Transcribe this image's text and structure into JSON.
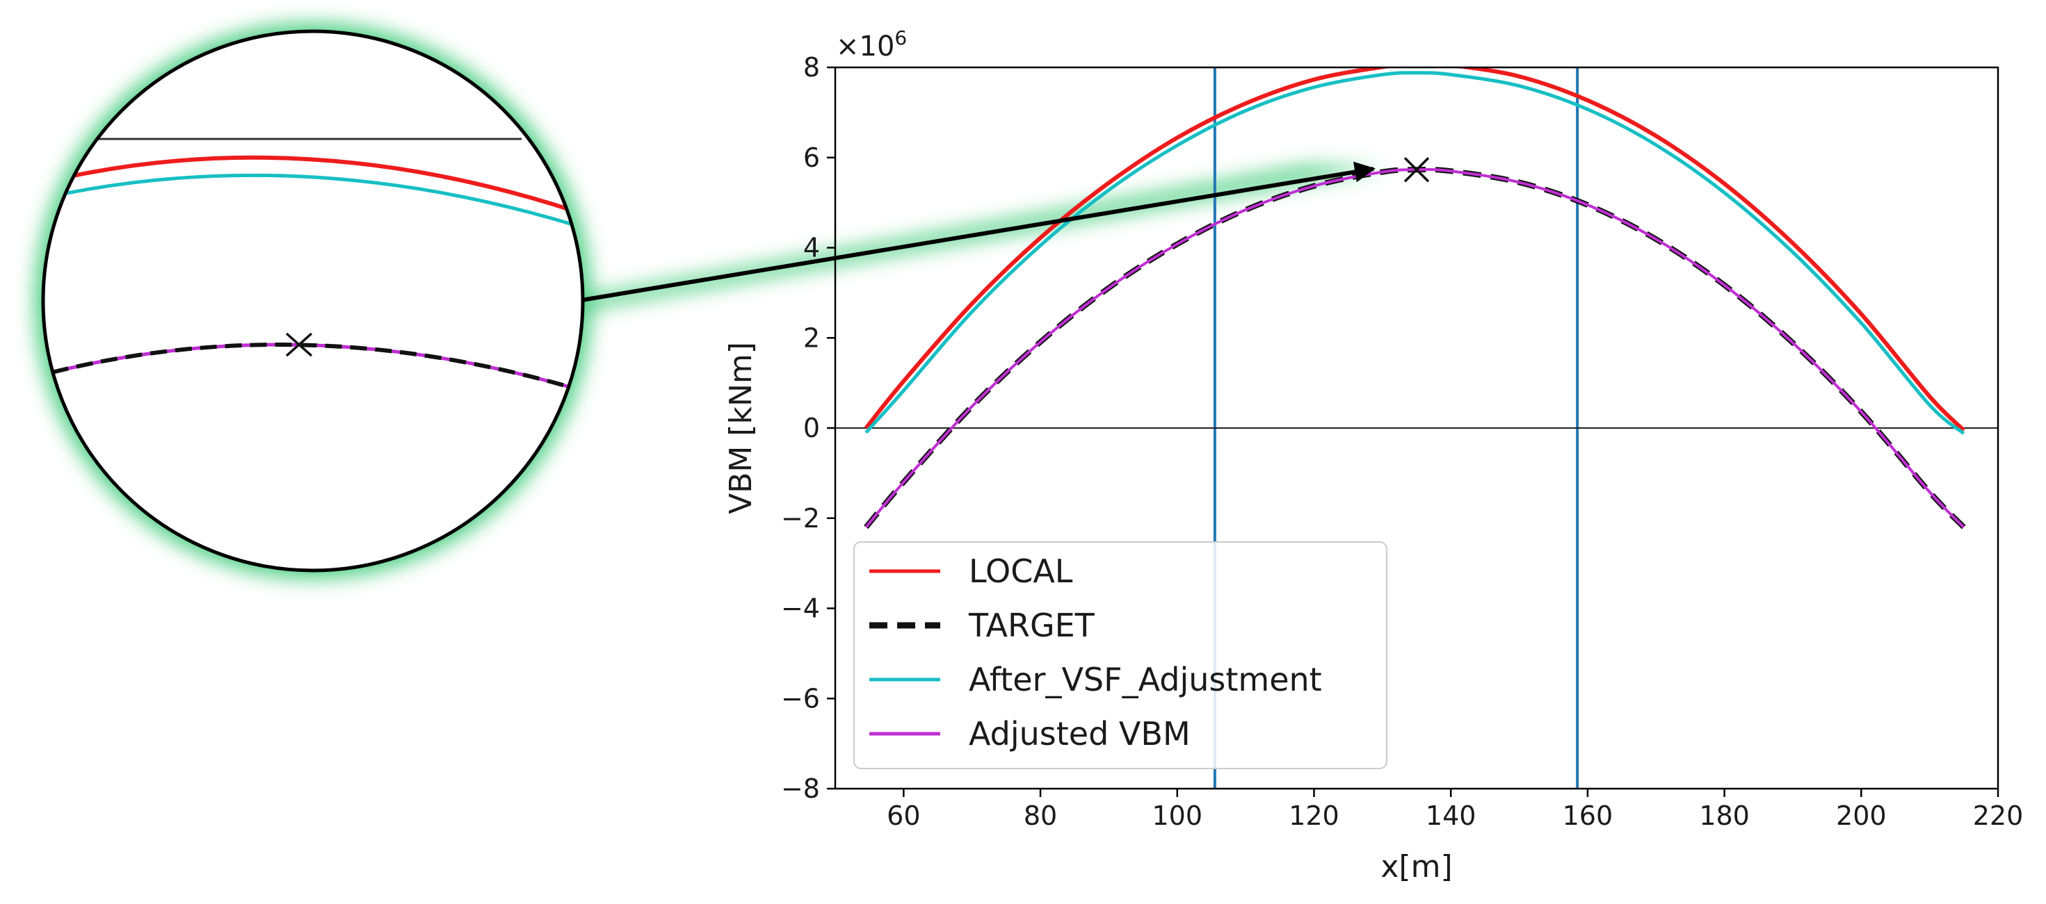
{
  "chart_data": {
    "type": "line",
    "title": "",
    "xlabel": "x[m]",
    "ylabel": "VBM [kNm]",
    "y_multiplier_label": "×10",
    "y_multiplier_exponent": "6",
    "xlim": [
      50,
      220
    ],
    "ylim": [
      -8,
      8
    ],
    "xticks": [
      60,
      80,
      100,
      120,
      140,
      160,
      180,
      200,
      220
    ],
    "yticks": [
      -8,
      -6,
      -4,
      -2,
      0,
      2,
      4,
      6,
      8
    ],
    "ytick_labels": [
      "−8",
      "−6",
      "−4",
      "−2",
      "0",
      "2",
      "4",
      "6",
      "8"
    ],
    "vertical_lines_x": [
      105.5,
      158.5
    ],
    "horizontal_line_y": 0,
    "grid": false,
    "legend_position": "lower-left",
    "colors": {
      "local": "#ee1c1c",
      "target": "#111111",
      "after_vsf": "#17bfc4",
      "adjusted": "#bf2fd2",
      "vline": "#2277b5",
      "glow": "#3ccb78"
    },
    "series": [
      {
        "name": "LOCAL",
        "style": "solid",
        "x": [
          54.5,
          60,
          70,
          80,
          90,
          100,
          110,
          120,
          130,
          135,
          140,
          150,
          160,
          170,
          180,
          190,
          200,
          210,
          215
        ],
        "y": [
          0.0,
          1.04,
          2.76,
          4.22,
          5.44,
          6.44,
          7.2,
          7.73,
          8.01,
          8.08,
          8.05,
          7.8,
          7.27,
          6.48,
          5.42,
          4.1,
          2.53,
          0.7,
          -0.05
        ]
      },
      {
        "name": "TARGET",
        "style": "dashed",
        "x": [
          54.5,
          60,
          70,
          80,
          90,
          100,
          110,
          120,
          130,
          135,
          140,
          150,
          160,
          170,
          180,
          190,
          200,
          210,
          215
        ],
        "y": [
          -2.2,
          -1.2,
          0.48,
          1.91,
          3.11,
          4.08,
          4.84,
          5.37,
          5.68,
          5.73,
          5.7,
          5.45,
          4.95,
          4.19,
          3.17,
          1.89,
          0.36,
          -1.42,
          -2.2
        ]
      },
      {
        "name": "After_VSF_Adjustment",
        "style": "solid",
        "x": [
          54.5,
          60,
          70,
          80,
          90,
          100,
          110,
          120,
          130,
          135,
          140,
          150,
          160,
          170,
          180,
          190,
          200,
          210,
          215
        ],
        "y": [
          -0.1,
          0.83,
          2.58,
          4.05,
          5.28,
          6.27,
          7.04,
          7.56,
          7.84,
          7.88,
          7.84,
          7.59,
          7.07,
          6.28,
          5.22,
          3.9,
          2.33,
          0.51,
          -0.12
        ]
      },
      {
        "name": "Adjusted VBM",
        "style": "solid",
        "x": [
          54.5,
          60,
          70,
          80,
          90,
          100,
          110,
          120,
          130,
          135,
          140,
          150,
          160,
          170,
          180,
          190,
          200,
          210,
          215
        ],
        "y": [
          -2.2,
          -1.2,
          0.48,
          1.91,
          3.11,
          4.08,
          4.84,
          5.37,
          5.68,
          5.73,
          5.7,
          5.45,
          4.95,
          4.19,
          3.17,
          1.89,
          0.36,
          -1.42,
          -2.2
        ]
      }
    ],
    "marker": {
      "symbol": "x",
      "x": 135,
      "y": 5.73
    }
  }
}
